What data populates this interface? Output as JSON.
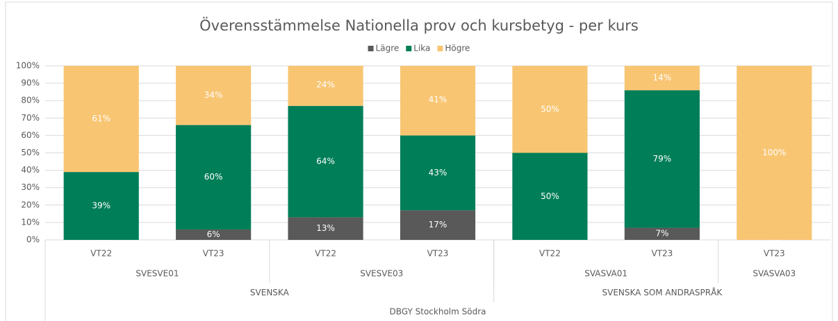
{
  "chart_data": {
    "type": "stacked_bar",
    "title": "Överensstämmelse Nationella prov och kursbetyg - per kurs",
    "groups": [
      {
        "name": "DBGY Stockholm Södra",
        "groups": [
          {
            "name": "SVENSKA",
            "groups": [
              {
                "name": "SVESVE01",
                "categories": [
                  "VT22",
                  "VT23"
                ]
              },
              {
                "name": "SVESVE03",
                "categories": [
                  "VT22",
                  "VT23"
                ]
              }
            ]
          },
          {
            "name": "SVENSKA SOM ANDRASPRÅK",
            "groups": [
              {
                "name": "SVASVA01",
                "categories": [
                  "VT22",
                  "VT23"
                ]
              },
              {
                "name": "SVASVA03",
                "categories": [
                  "VT23"
                ]
              }
            ]
          }
        ]
      }
    ],
    "series": [
      {
        "name": "Lägre",
        "color": "#595959",
        "values": [
          0,
          6,
          13,
          17,
          0,
          7,
          0
        ],
        "value_labels": [
          "0%",
          "6%",
          "13%",
          "17%",
          "0%",
          "7%",
          "0%"
        ]
      },
      {
        "name": "Lika",
        "color": "#007e57",
        "values": [
          39,
          60,
          64,
          43,
          50,
          79,
          null
        ],
        "value_labels": [
          "39%",
          "60%",
          "64%",
          "43%",
          "50%",
          "79%",
          null
        ]
      },
      {
        "name": "Högre",
        "color": "#f8c572",
        "values": [
          61,
          34,
          24,
          41,
          50,
          14,
          100
        ],
        "value_labels": [
          "61%",
          "34%",
          "24%",
          "41%",
          "50%",
          "14%",
          "100%"
        ]
      }
    ],
    "ylim": [
      0,
      100
    ],
    "yticks": [
      {
        "value": 0,
        "label": "0%"
      },
      {
        "value": 10,
        "label": "10%"
      },
      {
        "value": 20,
        "label": "20%"
      },
      {
        "value": 30,
        "label": "30%"
      },
      {
        "value": 40,
        "label": "40%"
      },
      {
        "value": 50,
        "label": "50%"
      },
      {
        "value": 60,
        "label": "60%"
      },
      {
        "value": 70,
        "label": "70%"
      },
      {
        "value": 80,
        "label": "80%"
      },
      {
        "value": 90,
        "label": "90%"
      },
      {
        "value": 100,
        "label": "100%"
      }
    ],
    "grid": true,
    "legend": "top"
  }
}
